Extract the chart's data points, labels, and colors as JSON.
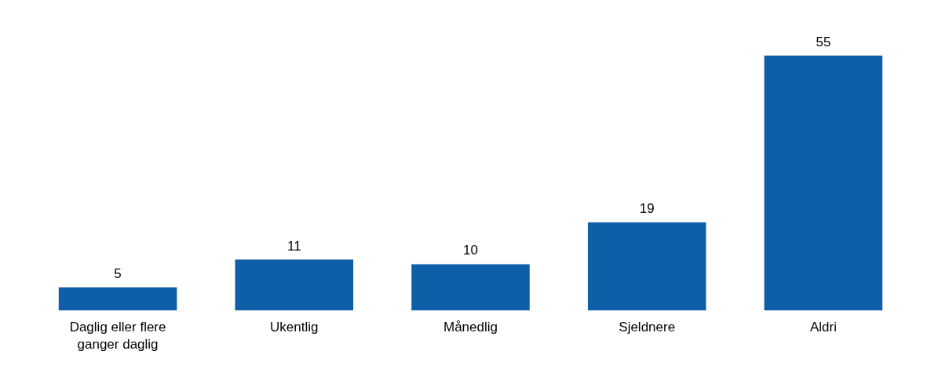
{
  "chart_data": {
    "type": "bar",
    "categories": [
      "Daglig eller flere ganger daglig",
      "Ukentlig",
      "Månedlig",
      "Sjeldnere",
      "Aldri"
    ],
    "values": [
      5,
      11,
      10,
      19,
      55
    ],
    "color": "#0e5ea8",
    "data_labels": true
  }
}
